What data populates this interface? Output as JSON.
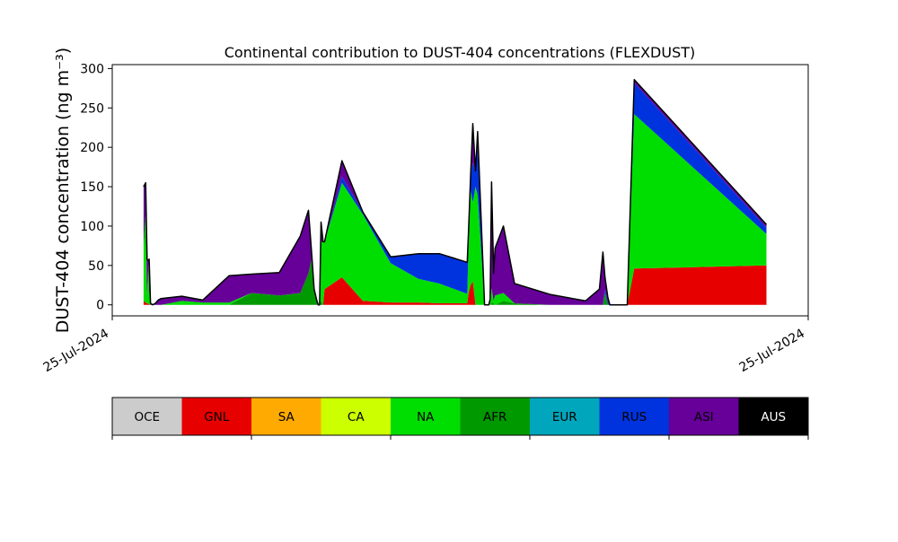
{
  "chart_data": {
    "type": "area",
    "stacked": true,
    "title": "Continental contribution to DUST-404 concentrations (FLEXDUST)",
    "ylabel": "DUST-404 concentration (ng m⁻³)",
    "xlabel": "",
    "xticks": [
      "25-Jul-2024",
      "25-Jul-2024"
    ],
    "yticks": [
      0,
      50,
      100,
      150,
      200,
      250,
      300
    ],
    "ylim": [
      -14,
      305
    ],
    "xlim": [
      0,
      1
    ],
    "legend_position": "bottom",
    "legend": [
      {
        "name": "OCE",
        "color": "#cccccc",
        "text_color": "#000000"
      },
      {
        "name": "GNL",
        "color": "#e60000",
        "text_color": "#000000"
      },
      {
        "name": "SA",
        "color": "#ffaa00",
        "text_color": "#000000"
      },
      {
        "name": "CA",
        "color": "#ccff00",
        "text_color": "#000000"
      },
      {
        "name": "NA",
        "color": "#00dd00",
        "text_color": "#000000"
      },
      {
        "name": "AFR",
        "color": "#009900",
        "text_color": "#000000"
      },
      {
        "name": "EUR",
        "color": "#00a6bb",
        "text_color": "#000000"
      },
      {
        "name": "RUS",
        "color": "#0033dd",
        "text_color": "#000000"
      },
      {
        "name": "ASI",
        "color": "#660099",
        "text_color": "#000000"
      },
      {
        "name": "AUS",
        "color": "#000000",
        "text_color": "#ffffff"
      }
    ],
    "x": [
      0.045,
      0.048,
      0.05,
      0.052,
      0.053,
      0.055,
      0.058,
      0.062,
      0.066,
      0.07,
      0.1,
      0.13,
      0.168,
      0.2,
      0.24,
      0.27,
      0.282,
      0.287,
      0.29,
      0.294,
      0.296,
      0.298,
      0.3,
      0.303,
      0.305,
      0.33,
      0.36,
      0.4,
      0.44,
      0.47,
      0.51,
      0.512,
      0.515,
      0.518,
      0.522,
      0.525,
      0.535,
      0.541,
      0.543,
      0.545,
      0.548,
      0.55,
      0.562,
      0.578,
      0.63,
      0.68,
      0.7,
      0.705,
      0.708,
      0.712,
      0.715,
      0.72,
      0.725,
      0.73,
      0.735,
      0.74,
      0.75,
      0.94
    ],
    "series": [
      {
        "name": "GNL",
        "values": [
          5,
          3,
          2,
          1,
          1,
          0,
          0,
          0,
          0,
          0,
          0,
          0,
          0,
          0,
          0,
          0,
          0,
          0,
          0,
          0,
          0,
          0,
          0,
          0,
          20,
          35,
          5,
          3,
          3,
          2,
          2,
          15,
          25,
          30,
          0,
          0,
          0,
          0,
          0,
          0,
          0,
          0,
          0,
          0,
          0,
          0,
          0,
          0,
          0,
          0,
          0,
          0,
          0,
          0,
          0,
          0,
          46,
          50
        ]
      },
      {
        "name": "AFR",
        "values": [
          0,
          0,
          0,
          0,
          0,
          0,
          0,
          0,
          0,
          0,
          0,
          0,
          0,
          15,
          12,
          15,
          40,
          60,
          20,
          5,
          0,
          0,
          5,
          0,
          0,
          0,
          0,
          0,
          0,
          0,
          0,
          0,
          0,
          0,
          0,
          0,
          0,
          0,
          0,
          3,
          2,
          0,
          5,
          2,
          0,
          0,
          0,
          0,
          15,
          0,
          0,
          0,
          0,
          0,
          0,
          0,
          0,
          0
        ]
      },
      {
        "name": "NA",
        "values": [
          70,
          115,
          10,
          50,
          15,
          0,
          0,
          0,
          0,
          0,
          5,
          3,
          3,
          0,
          0,
          0,
          0,
          0,
          0,
          0,
          0,
          0,
          75,
          80,
          60,
          120,
          110,
          50,
          30,
          25,
          12,
          60,
          120,
          100,
          150,
          140,
          0,
          0,
          2,
          18,
          3,
          12,
          10,
          0,
          0,
          0,
          0,
          0,
          0,
          0,
          0,
          0,
          0,
          0,
          0,
          0,
          196,
          40
        ]
      },
      {
        "name": "RUS",
        "values": [
          0,
          0,
          0,
          0,
          0,
          0,
          0,
          0,
          0,
          0,
          0,
          0,
          0,
          0,
          0,
          0,
          0,
          0,
          0,
          0,
          0,
          0,
          0,
          0,
          0,
          8,
          3,
          8,
          32,
          38,
          40,
          20,
          20,
          50,
          20,
          60,
          0,
          0,
          0,
          0,
          0,
          0,
          0,
          0,
          0,
          0,
          0,
          0,
          5,
          3,
          0,
          0,
          0,
          0,
          0,
          0,
          40,
          8
        ]
      },
      {
        "name": "ASI",
        "values": [
          75,
          37,
          46,
          5,
          42,
          2,
          0,
          2,
          6,
          8,
          6,
          3,
          34,
          24,
          29,
          72,
          80,
          0,
          0,
          0,
          0,
          0,
          25,
          0,
          0,
          20,
          0,
          0,
          0,
          0,
          0,
          0,
          0,
          50,
          0,
          20,
          0,
          0,
          5,
          135,
          35,
          60,
          85,
          25,
          13,
          5,
          20,
          67,
          15,
          7,
          0,
          0,
          0,
          0,
          0,
          0,
          4,
          4
        ]
      }
    ]
  },
  "colors": {
    "background": "#ffffff",
    "axis": "#000000",
    "outline": "#000000"
  }
}
